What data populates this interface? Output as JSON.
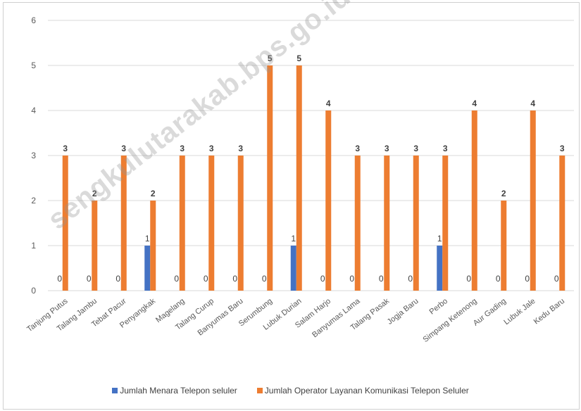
{
  "watermark": "sengkulutarakab.bps.go.id",
  "colors": {
    "series1": "#4472c4",
    "series2": "#ed7d31",
    "grid": "#d9d9d9",
    "text": "#595959"
  },
  "chart_data": {
    "type": "bar",
    "categories": [
      "Tanjung Putus",
      "Talang Jambu",
      "Tebat Pacur",
      "Penyangkak",
      "Magelang",
      "Talang Curup",
      "Banyumas Baru",
      "Serumbung",
      "Lubuk Durian",
      "Salam Harjo",
      "Banyumas Lama",
      "Talang Pasak",
      "Jogja Baru",
      "Perbo",
      "Simpang Ketenong",
      "Aur Gading",
      "Lubuk Jale",
      "Kedu Baru"
    ],
    "series": [
      {
        "name": "Jumlah Menara Telepon seluler",
        "values": [
          0,
          0,
          0,
          1,
          0,
          0,
          0,
          0,
          1,
          0,
          0,
          0,
          0,
          1,
          0,
          0,
          0,
          0
        ]
      },
      {
        "name": "Jumlah Operator Layanan Komunikasi Telepon Seluler",
        "values": [
          3,
          2,
          3,
          2,
          3,
          3,
          3,
          5,
          5,
          4,
          3,
          3,
          3,
          3,
          4,
          2,
          4,
          3
        ]
      }
    ],
    "y_ticks": [
      "0",
      "1",
      "2",
      "3",
      "4",
      "5",
      "6"
    ],
    "ylim": [
      0,
      6
    ],
    "grid": true,
    "legend": "bottom"
  }
}
